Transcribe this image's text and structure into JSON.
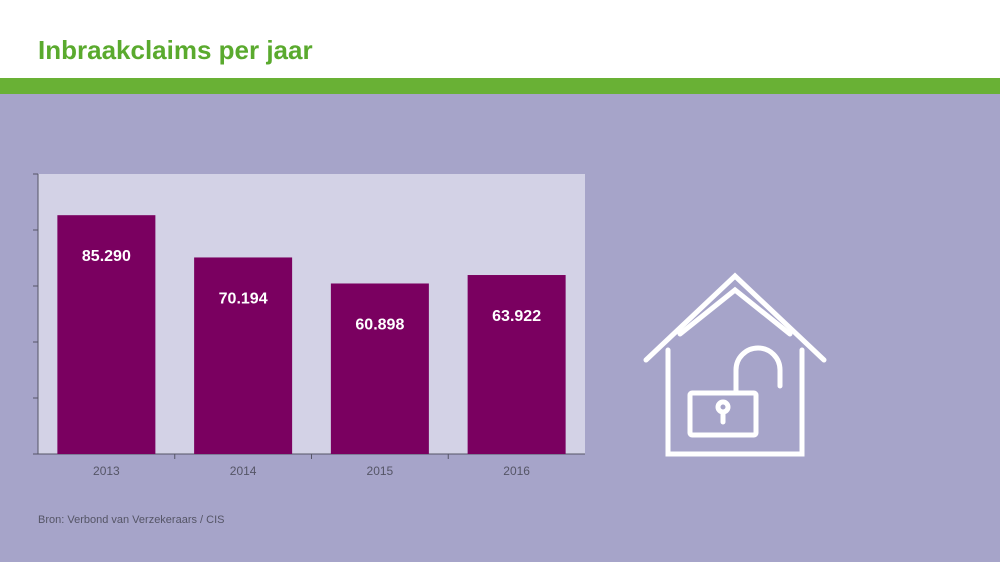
{
  "page": {
    "title": "Inbraakclaims per jaar",
    "source": "Bron: Verbond van Verzekeraars / CIS"
  },
  "colors": {
    "title": "#5aaa2e",
    "stripe": "#69b135",
    "panel": "#a6a4c9",
    "plot_area": "#d3d2e6",
    "bar": "#7a0060",
    "bar_label": "#ffffff",
    "axis": "#555566",
    "icon": "#ffffff"
  },
  "icon": {
    "name": "house-open-lock-icon"
  },
  "chart_data": {
    "type": "bar",
    "categories": [
      "2013",
      "2014",
      "2015",
      "2016"
    ],
    "values": [
      85290,
      70194,
      60898,
      63922
    ],
    "data_labels": [
      "85.290",
      "70.194",
      "60.898",
      "63.922"
    ],
    "ylim": [
      0,
      100000
    ],
    "y_ticks": [
      0,
      20000,
      40000,
      60000,
      80000,
      100000
    ],
    "y_tick_labels_visible": false,
    "grid": false,
    "legend": "none",
    "title": "",
    "xlabel": "",
    "ylabel": ""
  }
}
